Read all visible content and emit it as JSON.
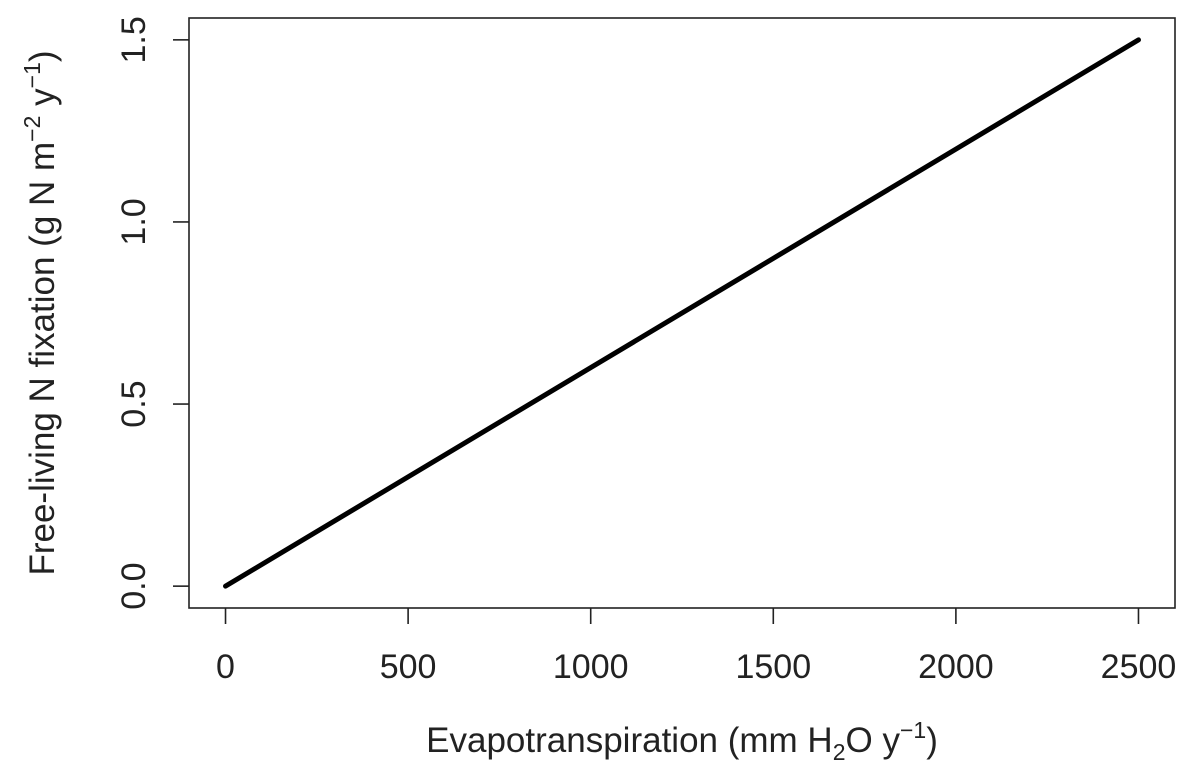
{
  "chart_data": {
    "type": "line",
    "title": "",
    "xlabel": {
      "parts": [
        {
          "text": "Evapotranspiration (mm H"
        },
        {
          "text": "2",
          "shift": "sub"
        },
        {
          "text": "O y"
        },
        {
          "text": "−1",
          "shift": "super"
        },
        {
          "text": ")"
        }
      ]
    },
    "ylabel": {
      "parts": [
        {
          "text": "Free-living N fixation (g N m"
        },
        {
          "text": "−2",
          "shift": "super"
        },
        {
          "text": " y"
        },
        {
          "text": "−1",
          "shift": "super"
        },
        {
          "text": ")"
        }
      ]
    },
    "xlim": [
      -100,
      2600
    ],
    "ylim": [
      -0.06,
      1.56
    ],
    "x_ticks": [
      {
        "value": 0,
        "label": "0"
      },
      {
        "value": 500,
        "label": "500"
      },
      {
        "value": 1000,
        "label": "1000"
      },
      {
        "value": 1500,
        "label": "1500"
      },
      {
        "value": 2000,
        "label": "2000"
      },
      {
        "value": 2500,
        "label": "2500"
      }
    ],
    "y_ticks": [
      {
        "value": 0.0,
        "label": "0.0"
      },
      {
        "value": 0.5,
        "label": "0.5"
      },
      {
        "value": 1.0,
        "label": "1.0"
      },
      {
        "value": 1.5,
        "label": "1.5"
      }
    ],
    "grid": false,
    "series": [
      {
        "x": [
          0,
          500,
          1000,
          1500,
          2000,
          2500
        ],
        "y": [
          0.0,
          0.3,
          0.6,
          0.9,
          1.2,
          1.5
        ],
        "color": "#000000"
      }
    ]
  }
}
